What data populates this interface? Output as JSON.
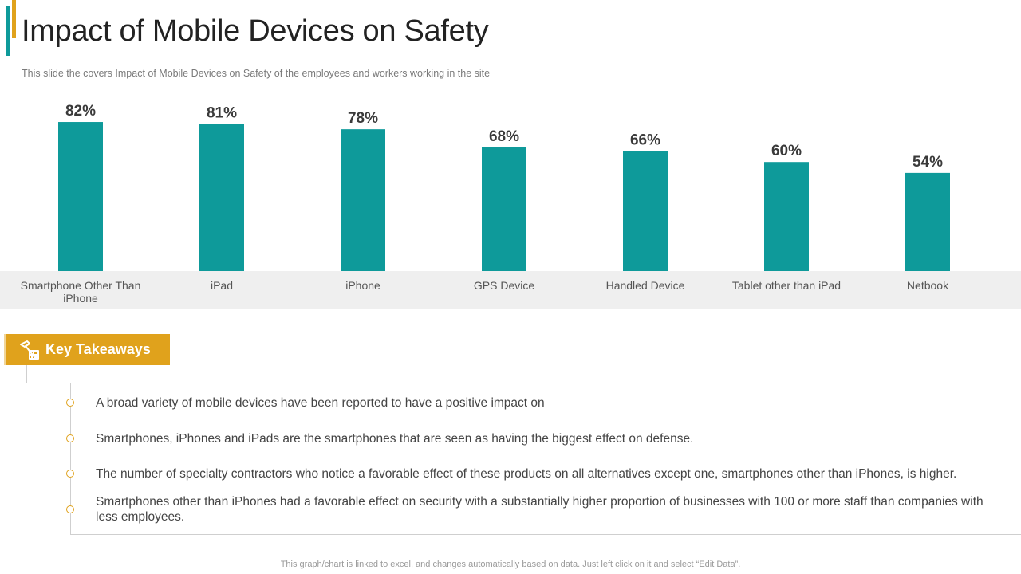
{
  "slide": {
    "title": "Impact of Mobile Devices on Safety",
    "subtitle": "This slide the covers Impact of Mobile Devices on Safety of the employees and workers working in the site",
    "footer": "This graph/chart is linked to excel, and changes automatically based on data. Just left click on it and select “Edit Data”."
  },
  "colors": {
    "bar": "#0E9A9A",
    "accent_gold": "#E0A21C",
    "accent_teal": "#0E9A9A",
    "category_band": "#EFEFEF"
  },
  "chart_data": {
    "type": "bar",
    "categories": [
      "Smartphone Other Than iPhone",
      "iPad",
      "iPhone",
      "GPS Device",
      "Handled Device",
      "Tablet other than iPad",
      "Netbook"
    ],
    "values": [
      82,
      81,
      78,
      68,
      66,
      60,
      54
    ],
    "data_labels": [
      "82%",
      "81%",
      "78%",
      "68%",
      "66%",
      "60%",
      "54%"
    ],
    "title": "",
    "xlabel": "",
    "ylabel": "",
    "ylim": [
      0,
      100
    ],
    "grid": false,
    "legend": "none"
  },
  "takeaways": {
    "heading": "Key Takeaways",
    "icon": "tools-icon",
    "items": [
      "A broad variety of mobile devices have been reported to have a positive impact on",
      "Smartphones, iPhones and iPads are the smartphones that are seen as having the biggest effect on defense.",
      "The number of specialty contractors who notice a favorable effect of these products on all alternatives except one, smartphones other than iPhones, is higher.",
      "Smartphones other than iPhones had a favorable effect on security with a substantially higher proportion of businesses with 100 or more staff than companies with less employees."
    ]
  }
}
